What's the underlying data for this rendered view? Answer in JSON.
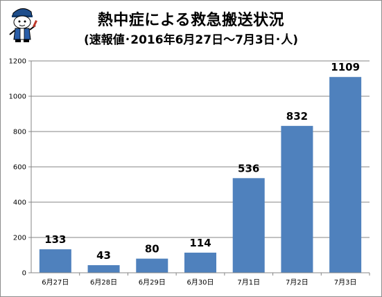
{
  "chart_data": {
    "type": "bar",
    "title": "熱中症による救急搬送状況",
    "subtitle": "(速報値･2016年6月27日～7月3日･人)",
    "xlabel": "",
    "ylabel": "",
    "categories": [
      "6月27日",
      "6月28日",
      "6月29日",
      "6月30日",
      "7月1日",
      "7月2日",
      "7月3日"
    ],
    "values": [
      133,
      43,
      80,
      114,
      536,
      832,
      1109
    ],
    "ylim": [
      0,
      1200
    ],
    "yticks": [
      0,
      200,
      400,
      600,
      800,
      1000,
      1200
    ],
    "grid": true,
    "legend": "none",
    "bar_color": "#4f81bd",
    "grid_color": "#868686"
  },
  "mascot": {
    "icon": "mascot-icon"
  }
}
